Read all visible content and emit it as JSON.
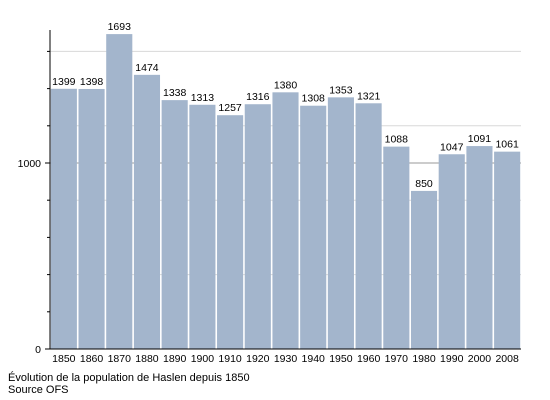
{
  "chart_data": {
    "type": "bar",
    "categories": [
      "1850",
      "1860",
      "1870",
      "1880",
      "1890",
      "1900",
      "1910",
      "1920",
      "1930",
      "1940",
      "1950",
      "1960",
      "1970",
      "1980",
      "1990",
      "2000",
      "2008"
    ],
    "values": [
      1399,
      1398,
      1693,
      1474,
      1338,
      1313,
      1257,
      1316,
      1380,
      1308,
      1353,
      1321,
      1088,
      850,
      1047,
      1091,
      1061
    ],
    "ylim": [
      0,
      1700
    ],
    "yticks": [
      "0",
      "1000"
    ],
    "grid": true,
    "bar_color": "#a3b5cc",
    "grid_color": "#d8d8d8"
  },
  "caption": {
    "line1": "Évolution de la population de Haslen depuis 1850",
    "line2": "Source OFS"
  }
}
